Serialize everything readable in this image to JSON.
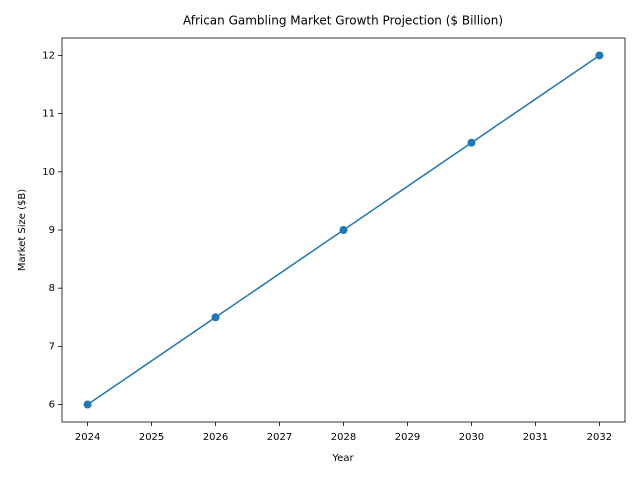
{
  "chart_data": {
    "type": "line",
    "title": "African Gambling Market Growth Projection ($ Billion)",
    "x_label": "Year",
    "y_label": "Market Size ($B)",
    "x": [
      2024,
      2026,
      2028,
      2030,
      2032
    ],
    "series": [
      {
        "color": "#1f77b4",
        "values": [
          6,
          7.5,
          9,
          10.5,
          12
        ]
      }
    ],
    "xlim": [
      2023.6,
      2032.4
    ],
    "xticks": [
      2024,
      2025,
      2026,
      2027,
      2028,
      2029,
      2030,
      2031,
      2032
    ],
    "ylim": [
      5.7,
      12.3
    ],
    "yticks": [
      6,
      7,
      8,
      9,
      10,
      11,
      12
    ],
    "grid": false,
    "markers": true
  }
}
